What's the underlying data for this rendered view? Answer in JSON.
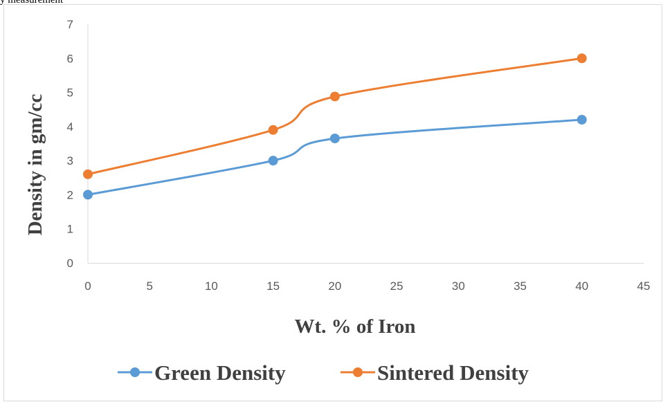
{
  "header_fragment": "y measurement",
  "chart_data": {
    "type": "line",
    "x": [
      0,
      15,
      20,
      40
    ],
    "series": [
      {
        "name": "Green Density",
        "values": [
          2.0,
          3.0,
          3.65,
          4.2
        ],
        "color": "#5b9bd5"
      },
      {
        "name": "Sintered Density",
        "values": [
          2.6,
          3.9,
          4.88,
          6.0
        ],
        "color": "#ed7d31"
      }
    ],
    "xlabel": "Wt. % of Iron",
    "ylabel": "Density in gm/cc",
    "xlim": [
      0,
      45
    ],
    "ylim": [
      0,
      7
    ],
    "x_ticks": [
      "0",
      "5",
      "10",
      "15",
      "20",
      "25",
      "30",
      "35",
      "40",
      "45"
    ],
    "y_ticks": [
      "0",
      "1",
      "2",
      "3",
      "4",
      "5",
      "6",
      "7"
    ],
    "grid": false,
    "legend_position": "bottom",
    "smoothed": true
  }
}
